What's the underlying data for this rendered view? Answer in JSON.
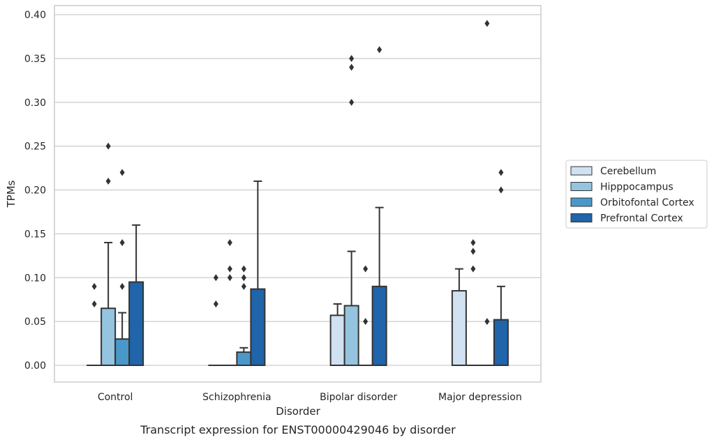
{
  "chart_data": {
    "type": "bar",
    "caption": "Transcript expression for ENST00000429046 by disorder",
    "xlabel": "Disorder",
    "ylabel": "TPMs",
    "ylim": [
      -0.019,
      0.41
    ],
    "yticks": [
      0.0,
      0.05,
      0.1,
      0.15,
      0.2,
      0.25,
      0.3,
      0.35,
      0.4
    ],
    "ytick_labels": [
      "0.00",
      "0.05",
      "0.10",
      "0.15",
      "0.20",
      "0.25",
      "0.30",
      "0.35",
      "0.40"
    ],
    "grid": "horizontal",
    "legend_position": "right",
    "categories": [
      "Control",
      "Schizophrenia",
      "Bipolar disorder",
      "Major depression"
    ],
    "series": [
      {
        "name": "Cerebellum",
        "color": "#d0e1f2",
        "values": [
          0.0,
          0.0,
          0.057,
          0.085
        ],
        "error_upper": [
          0.0,
          0.0,
          0.07,
          0.11
        ],
        "outliers": [
          [
            0.07,
            0.09
          ],
          [
            0.07,
            0.1
          ],
          [],
          []
        ]
      },
      {
        "name": "Hipppocampus",
        "color": "#94c4df",
        "values": [
          0.065,
          0.0,
          0.068,
          0.0
        ],
        "error_upper": [
          0.14,
          0.0,
          0.13,
          0.0
        ],
        "outliers": [
          [
            0.21,
            0.25
          ],
          [
            0.1,
            0.11,
            0.14
          ],
          [
            0.3,
            0.34,
            0.35
          ],
          [
            0.11,
            0.13,
            0.14
          ]
        ]
      },
      {
        "name": "Orbitofontal Cortex",
        "color": "#4a98c9",
        "values": [
          0.03,
          0.015,
          0.0,
          0.0
        ],
        "error_upper": [
          0.06,
          0.02,
          0.0,
          0.0
        ],
        "outliers": [
          [
            0.09,
            0.14,
            0.22
          ],
          [
            0.09,
            0.1,
            0.11
          ],
          [
            0.05,
            0.11
          ],
          [
            0.05,
            0.39
          ]
        ]
      },
      {
        "name": "Prefrontal Cortex",
        "color": "#2064aa",
        "values": [
          0.095,
          0.087,
          0.09,
          0.052
        ],
        "error_upper": [
          0.16,
          0.21,
          0.18,
          0.09
        ],
        "outliers": [
          [],
          [],
          [
            0.36
          ],
          [
            0.2,
            0.22
          ]
        ]
      }
    ]
  }
}
